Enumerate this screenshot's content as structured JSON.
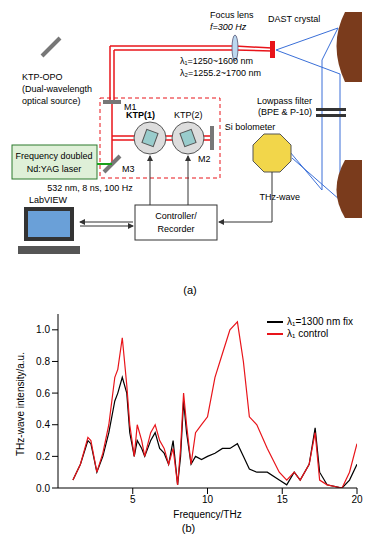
{
  "diagram": {
    "focus_lens": "Focus lens",
    "focal": "f=300 Hz",
    "dast": "DAST crystal",
    "lambda1": "λ₁=1250~1600 nm",
    "lambda2": "λ₂=1255.2~1700 nm",
    "opo": "KTP-OPO",
    "opo_note": [
      "(Dual-wavelength",
      "optical source)"
    ],
    "filter": [
      "Lowpass filter",
      "(BPE & P-10)"
    ],
    "m1": "M1",
    "m2": "M2",
    "m3": "M3",
    "ktp1": "KTP(1)",
    "ktp2": "KTP(2)",
    "laser": [
      "Frequency doubled",
      "Nd:YAG laser"
    ],
    "laser_spec": "532 nm, 8 ns, 100 Hz",
    "bolometer": "Si bolometer",
    "thz": "THz-wave",
    "labview": "LabVIEW",
    "controller": [
      "Controller/",
      "Recorder"
    ],
    "panel_a": "(a)",
    "panel_b": "(b)"
  },
  "chart_data": {
    "type": "line",
    "x_label": "Frequency/THz",
    "y_label": "THz-wave intensity/a.u.",
    "xlim": [
      0,
      20
    ],
    "xticks": [
      5,
      10,
      15,
      20
    ],
    "ylim": [
      0,
      1.1
    ],
    "yticks": [
      {
        "value": 0,
        "label": "0.0"
      },
      0.2,
      0.4,
      0.6,
      0.8,
      {
        "value": 1,
        "label": "1.0"
      }
    ],
    "grid": false,
    "legend": "upper right",
    "x": [
      1.0,
      1.5,
      2.0,
      2.2,
      2.6,
      3.0,
      3.4,
      3.8,
      4.0,
      4.3,
      4.6,
      4.8,
      5.1,
      5.3,
      5.6,
      5.8,
      6.2,
      6.5,
      6.8,
      7.1,
      7.4,
      7.7,
      8.0,
      8.2,
      8.4,
      8.6,
      8.9,
      9.2,
      9.6,
      10.0,
      10.5,
      11.0,
      11.5,
      12.0,
      12.4,
      12.8,
      13.3,
      14.0,
      14.8,
      15.3,
      15.8,
      16.2,
      16.8,
      17.2,
      17.5,
      18.0,
      19.0,
      19.5,
      20.0
    ],
    "series": [
      {
        "name": "λ₁=1300 nm fix",
        "color": "#000000",
        "values": [
          0.05,
          0.15,
          0.3,
          0.28,
          0.1,
          0.2,
          0.35,
          0.55,
          0.6,
          0.7,
          0.6,
          0.35,
          0.2,
          0.3,
          0.25,
          0.2,
          0.3,
          0.35,
          0.25,
          0.22,
          0.15,
          0.3,
          0.02,
          0.2,
          0.55,
          0.35,
          0.15,
          0.2,
          0.18,
          0.2,
          0.22,
          0.25,
          0.25,
          0.28,
          0.2,
          0.12,
          0.1,
          0.1,
          0.05,
          0.02,
          0.1,
          0.05,
          0.15,
          0.38,
          0.1,
          0.02,
          0.0,
          0.05,
          0.15
        ]
      },
      {
        "name": "λ₁ control",
        "color": "#e8141a",
        "values": [
          0.05,
          0.15,
          0.32,
          0.3,
          0.1,
          0.22,
          0.4,
          0.7,
          0.75,
          0.95,
          0.65,
          0.4,
          0.2,
          0.4,
          0.3,
          0.2,
          0.35,
          0.4,
          0.3,
          0.25,
          0.15,
          0.25,
          0.02,
          0.25,
          0.6,
          0.4,
          0.15,
          0.35,
          0.4,
          0.45,
          0.7,
          0.85,
          1.0,
          1.05,
          0.8,
          0.45,
          0.4,
          0.25,
          0.1,
          0.05,
          0.1,
          0.05,
          0.15,
          0.35,
          0.05,
          0.02,
          0.0,
          0.1,
          0.28
        ]
      }
    ]
  }
}
